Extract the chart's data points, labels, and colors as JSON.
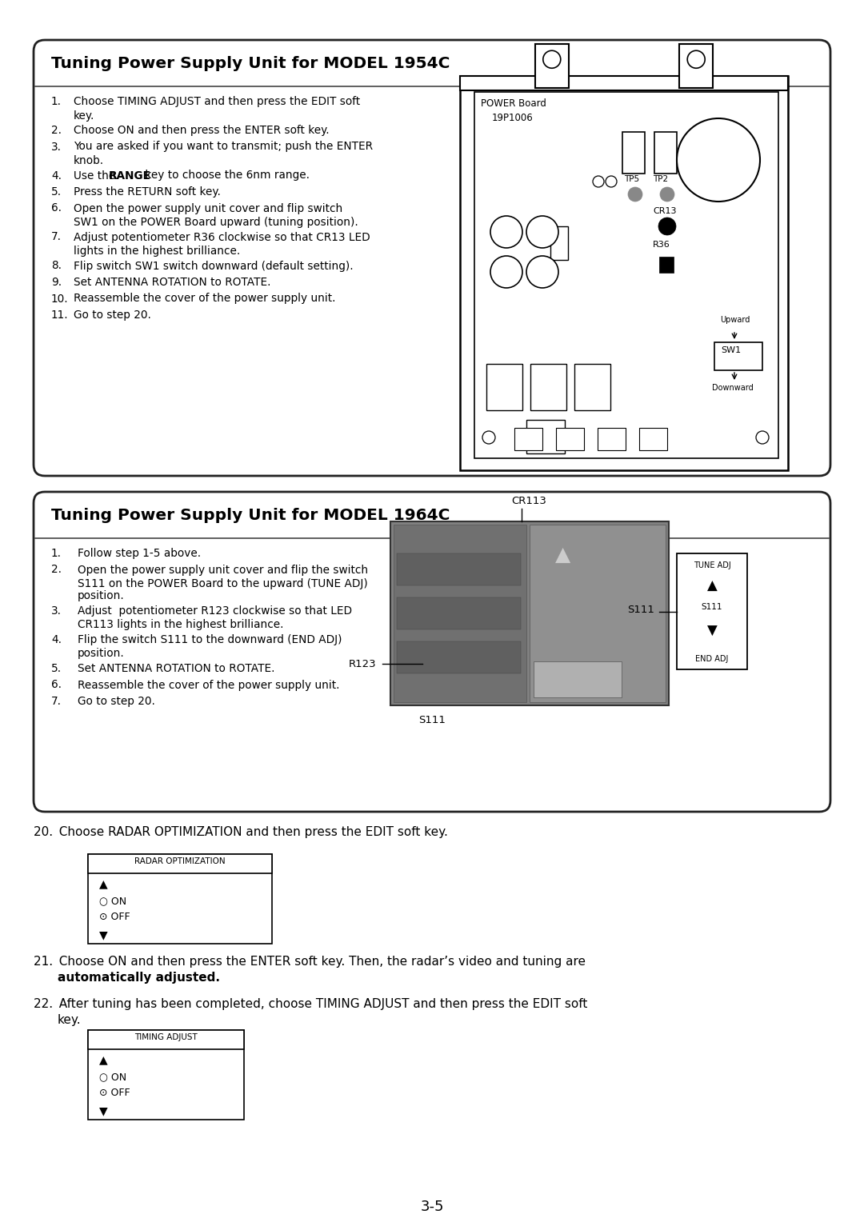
{
  "bg_color": "#ffffff",
  "box1_title": "Tuning Power Supply Unit for MODEL 1954C",
  "box1_steps_raw": [
    [
      "1.",
      "Choose TIMING ADJUST and then press the EDIT soft\nkey."
    ],
    [
      "2.",
      "Choose ON and then press the ENTER soft key."
    ],
    [
      "3.",
      "You are asked if you want to transmit; push the ENTER\nknob."
    ],
    [
      "4.",
      "Use the $$RANGE$$ key to choose the 6nm range."
    ],
    [
      "5.",
      "Press the RETURN soft key."
    ],
    [
      "6.",
      "Open the power supply unit cover and flip switch\nSW1 on the POWER Board upward (tuning position)."
    ],
    [
      "7.",
      "Adjust potentiometer R36 clockwise so that CR13 LED\nlights in the highest brilliance."
    ],
    [
      "8.",
      "Flip switch SW1 switch downward (default setting)."
    ],
    [
      "9.",
      "Set ANTENNA ROTATION to ROTATE."
    ],
    [
      "10.",
      "Reassemble the cover of the power supply unit."
    ],
    [
      "11.",
      "Go to step 20."
    ]
  ],
  "box2_title": "Tuning Power Supply Unit for MODEL 1964C",
  "box2_steps_raw": [
    [
      "1.",
      "Follow step 1-5 above."
    ],
    [
      "2.",
      "Open the power supply unit cover and flip the switch\nS111 on the POWER Board to the upward (TUNE ADJ)\nposition."
    ],
    [
      "3.",
      "Adjust  potentiometer R123 clockwise so that LED\nCR113 lights in the highest brilliance."
    ],
    [
      "4.",
      "Flip the switch S111 to the downward (END ADJ)\nposition."
    ],
    [
      "5.",
      "Set ANTENNA ROTATION to ROTATE."
    ],
    [
      "6.",
      "Reassemble the cover of the power supply unit."
    ],
    [
      "7.",
      "Go to step 20."
    ]
  ],
  "step20": "20. Choose RADAR OPTIMIZATION and then press the EDIT soft key.",
  "step21": "21. Choose ON and then press the ENTER soft key. Then, the radar’s video and tuning are\nautomatically adjusted.",
  "step22": "22. After tuning has been completed, choose TIMING ADJUST and then press the EDIT soft\nkey.",
  "page_number": "3-5"
}
